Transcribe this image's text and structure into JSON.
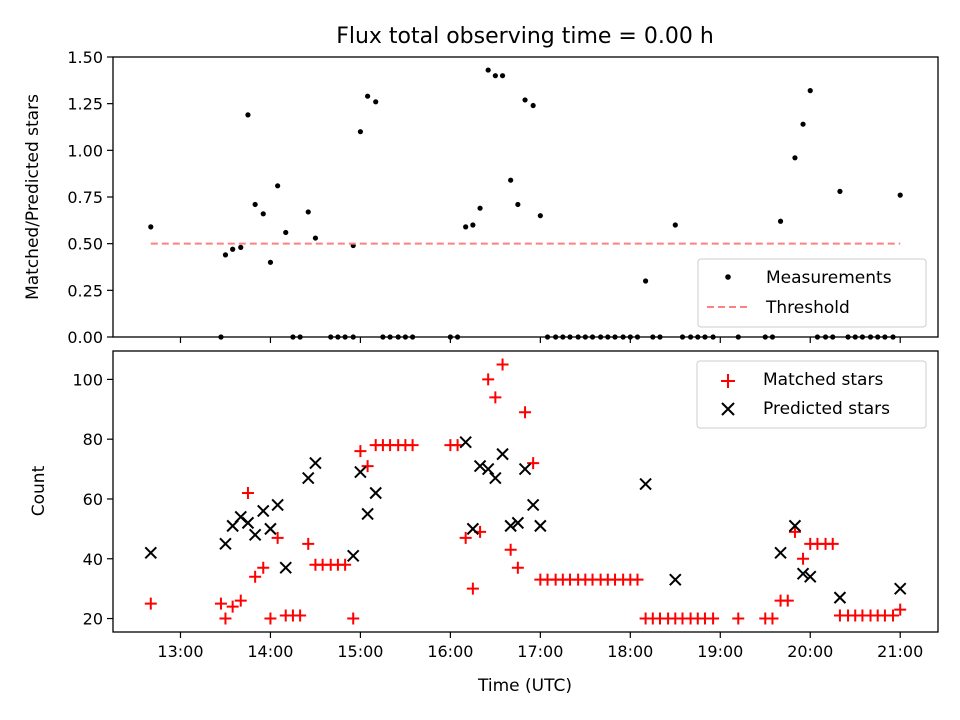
{
  "title": "Flux total observing time = 0.00 h",
  "xlabel": "Time (UTC)",
  "colors": {
    "matched": "#ff0000",
    "predicted": "#000000",
    "measurement": "#000000",
    "threshold": "#ff8080"
  },
  "chart_data": [
    {
      "type": "scatter",
      "title": "Flux total observing time = 0.00 h",
      "ylabel": "Matched/Predicted stars",
      "xlim": [
        12.25,
        21.42
      ],
      "ylim": [
        0,
        1.5
      ],
      "xticks": [
        13,
        14,
        15,
        16,
        17,
        18,
        19,
        20,
        21
      ],
      "xtick_labels": [
        "13:00",
        "14:00",
        "15:00",
        "16:00",
        "17:00",
        "18:00",
        "19:00",
        "20:00",
        "21:00"
      ],
      "yticks": [
        0,
        0.25,
        0.5,
        0.75,
        1.0,
        1.25,
        1.5
      ],
      "ytick_labels": [
        "0.00",
        "0.25",
        "0.50",
        "0.75",
        "1.00",
        "1.25",
        "1.50"
      ],
      "legend": {
        "position": "lower-right",
        "entries": [
          "Measurements",
          "Threshold"
        ]
      },
      "series": [
        {
          "name": "Measurements",
          "marker": "dot",
          "x": [
            12.67,
            13.5,
            13.58,
            13.67,
            13.75,
            13.83,
            13.92,
            14.0,
            14.08,
            14.17,
            14.42,
            14.5,
            14.92,
            15.0,
            15.08,
            15.17,
            16.17,
            16.25,
            16.33,
            16.42,
            16.5,
            16.58,
            16.67,
            16.75,
            16.83,
            16.92,
            17.0,
            18.17,
            18.5,
            19.67,
            19.83,
            19.92,
            20.0,
            20.33,
            21.0,
            13.45,
            14.25,
            14.33,
            14.67,
            14.75,
            14.83,
            14.92,
            15.25,
            15.33,
            15.42,
            15.5,
            15.58,
            16.0,
            16.08,
            17.08,
            17.17,
            17.25,
            17.33,
            17.42,
            17.5,
            17.58,
            17.67,
            17.75,
            17.83,
            17.92,
            18.0,
            18.08,
            18.25,
            18.33,
            18.58,
            18.67,
            18.75,
            18.83,
            18.92,
            19.2,
            19.5,
            19.58,
            20.08,
            20.17,
            20.25,
            20.42,
            20.5,
            20.58,
            20.67,
            20.75,
            20.83,
            20.92
          ],
          "y": [
            0.59,
            0.44,
            0.47,
            0.48,
            1.19,
            0.71,
            0.66,
            0.4,
            0.81,
            0.56,
            0.67,
            0.53,
            0.49,
            1.1,
            1.29,
            1.26,
            0.59,
            0.6,
            0.69,
            1.43,
            1.4,
            1.4,
            0.84,
            0.71,
            1.27,
            1.24,
            0.65,
            0.3,
            0.6,
            0.62,
            0.96,
            1.14,
            1.32,
            0.78,
            0.76,
            0,
            0,
            0,
            0,
            0,
            0,
            0,
            0,
            0,
            0,
            0,
            0,
            0,
            0,
            0,
            0,
            0,
            0,
            0,
            0,
            0,
            0,
            0,
            0,
            0,
            0,
            0,
            0,
            0,
            0,
            0,
            0,
            0,
            0,
            0,
            0,
            0,
            0,
            0,
            0,
            0,
            0,
            0,
            0,
            0,
            0,
            0
          ]
        },
        {
          "name": "Threshold",
          "type": "line",
          "style": "dashed",
          "x": [
            12.67,
            21.0
          ],
          "y": [
            0.5,
            0.5
          ]
        }
      ]
    },
    {
      "type": "scatter",
      "ylabel": "Count",
      "xlabel": "Time (UTC)",
      "xlim": [
        12.25,
        21.42
      ],
      "ylim": [
        15.5,
        109.5
      ],
      "xticks": [
        13,
        14,
        15,
        16,
        17,
        18,
        19,
        20,
        21
      ],
      "xtick_labels": [
        "13:00",
        "14:00",
        "15:00",
        "16:00",
        "17:00",
        "18:00",
        "19:00",
        "20:00",
        "21:00"
      ],
      "yticks": [
        20,
        40,
        60,
        80,
        100
      ],
      "ytick_labels": [
        "20",
        "40",
        "60",
        "80",
        "100"
      ],
      "legend": {
        "position": "top-right",
        "entries": [
          "Matched stars",
          "Predicted stars"
        ]
      },
      "series": [
        {
          "name": "Matched stars",
          "marker": "plus",
          "x": [
            12.67,
            13.45,
            13.5,
            13.58,
            13.67,
            13.75,
            13.83,
            13.92,
            14.0,
            14.08,
            14.17,
            14.25,
            14.33,
            14.42,
            14.5,
            14.58,
            14.67,
            14.75,
            14.83,
            14.92,
            15.0,
            15.08,
            15.17,
            15.25,
            15.33,
            15.42,
            15.5,
            15.58,
            16.0,
            16.08,
            16.17,
            16.25,
            16.33,
            16.42,
            16.5,
            16.58,
            16.67,
            16.75,
            16.83,
            16.92,
            17.0,
            17.08,
            17.17,
            17.25,
            17.33,
            17.42,
            17.5,
            17.58,
            17.67,
            17.75,
            17.83,
            17.92,
            18.0,
            18.08,
            18.17,
            18.25,
            18.33,
            18.42,
            18.5,
            18.58,
            18.67,
            18.75,
            18.83,
            18.92,
            19.2,
            19.5,
            19.58,
            19.67,
            19.75,
            19.83,
            19.92,
            20.0,
            20.08,
            20.17,
            20.25,
            20.33,
            20.42,
            20.5,
            20.58,
            20.67,
            20.75,
            20.83,
            20.92,
            21.0
          ],
          "y": [
            25,
            25,
            20,
            24,
            26,
            62,
            34,
            37,
            20,
            47,
            21,
            21,
            21,
            45,
            38,
            38,
            38,
            38,
            38,
            20,
            76,
            71,
            78,
            78,
            78,
            78,
            78,
            78,
            78,
            78,
            47,
            30,
            49,
            100,
            94,
            105,
            43,
            37,
            89,
            72,
            33,
            33,
            33,
            33,
            33,
            33,
            33,
            33,
            33,
            33,
            33,
            33,
            33,
            33,
            20,
            20,
            20,
            20,
            20,
            20,
            20,
            20,
            20,
            20,
            20,
            20,
            20,
            26,
            26,
            49,
            40,
            45,
            45,
            45,
            45,
            21,
            21,
            21,
            21,
            21,
            21,
            21,
            21,
            23
          ]
        },
        {
          "name": "Predicted stars",
          "marker": "x",
          "x": [
            12.67,
            13.5,
            13.58,
            13.67,
            13.75,
            13.83,
            13.92,
            14.0,
            14.08,
            14.17,
            14.42,
            14.5,
            14.92,
            15.0,
            15.08,
            15.17,
            16.17,
            16.25,
            16.33,
            16.42,
            16.5,
            16.58,
            16.67,
            16.75,
            16.83,
            16.92,
            17.0,
            18.17,
            18.5,
            19.67,
            19.83,
            19.92,
            20.0,
            20.33,
            21.0
          ],
          "y": [
            42,
            45,
            51,
            54,
            52,
            48,
            56,
            50,
            58,
            37,
            67,
            72,
            41,
            69,
            55,
            62,
            79,
            50,
            71,
            70,
            67,
            75,
            51,
            52,
            70,
            58,
            51,
            65,
            33,
            42,
            51,
            35,
            34,
            27,
            30
          ]
        }
      ]
    }
  ]
}
